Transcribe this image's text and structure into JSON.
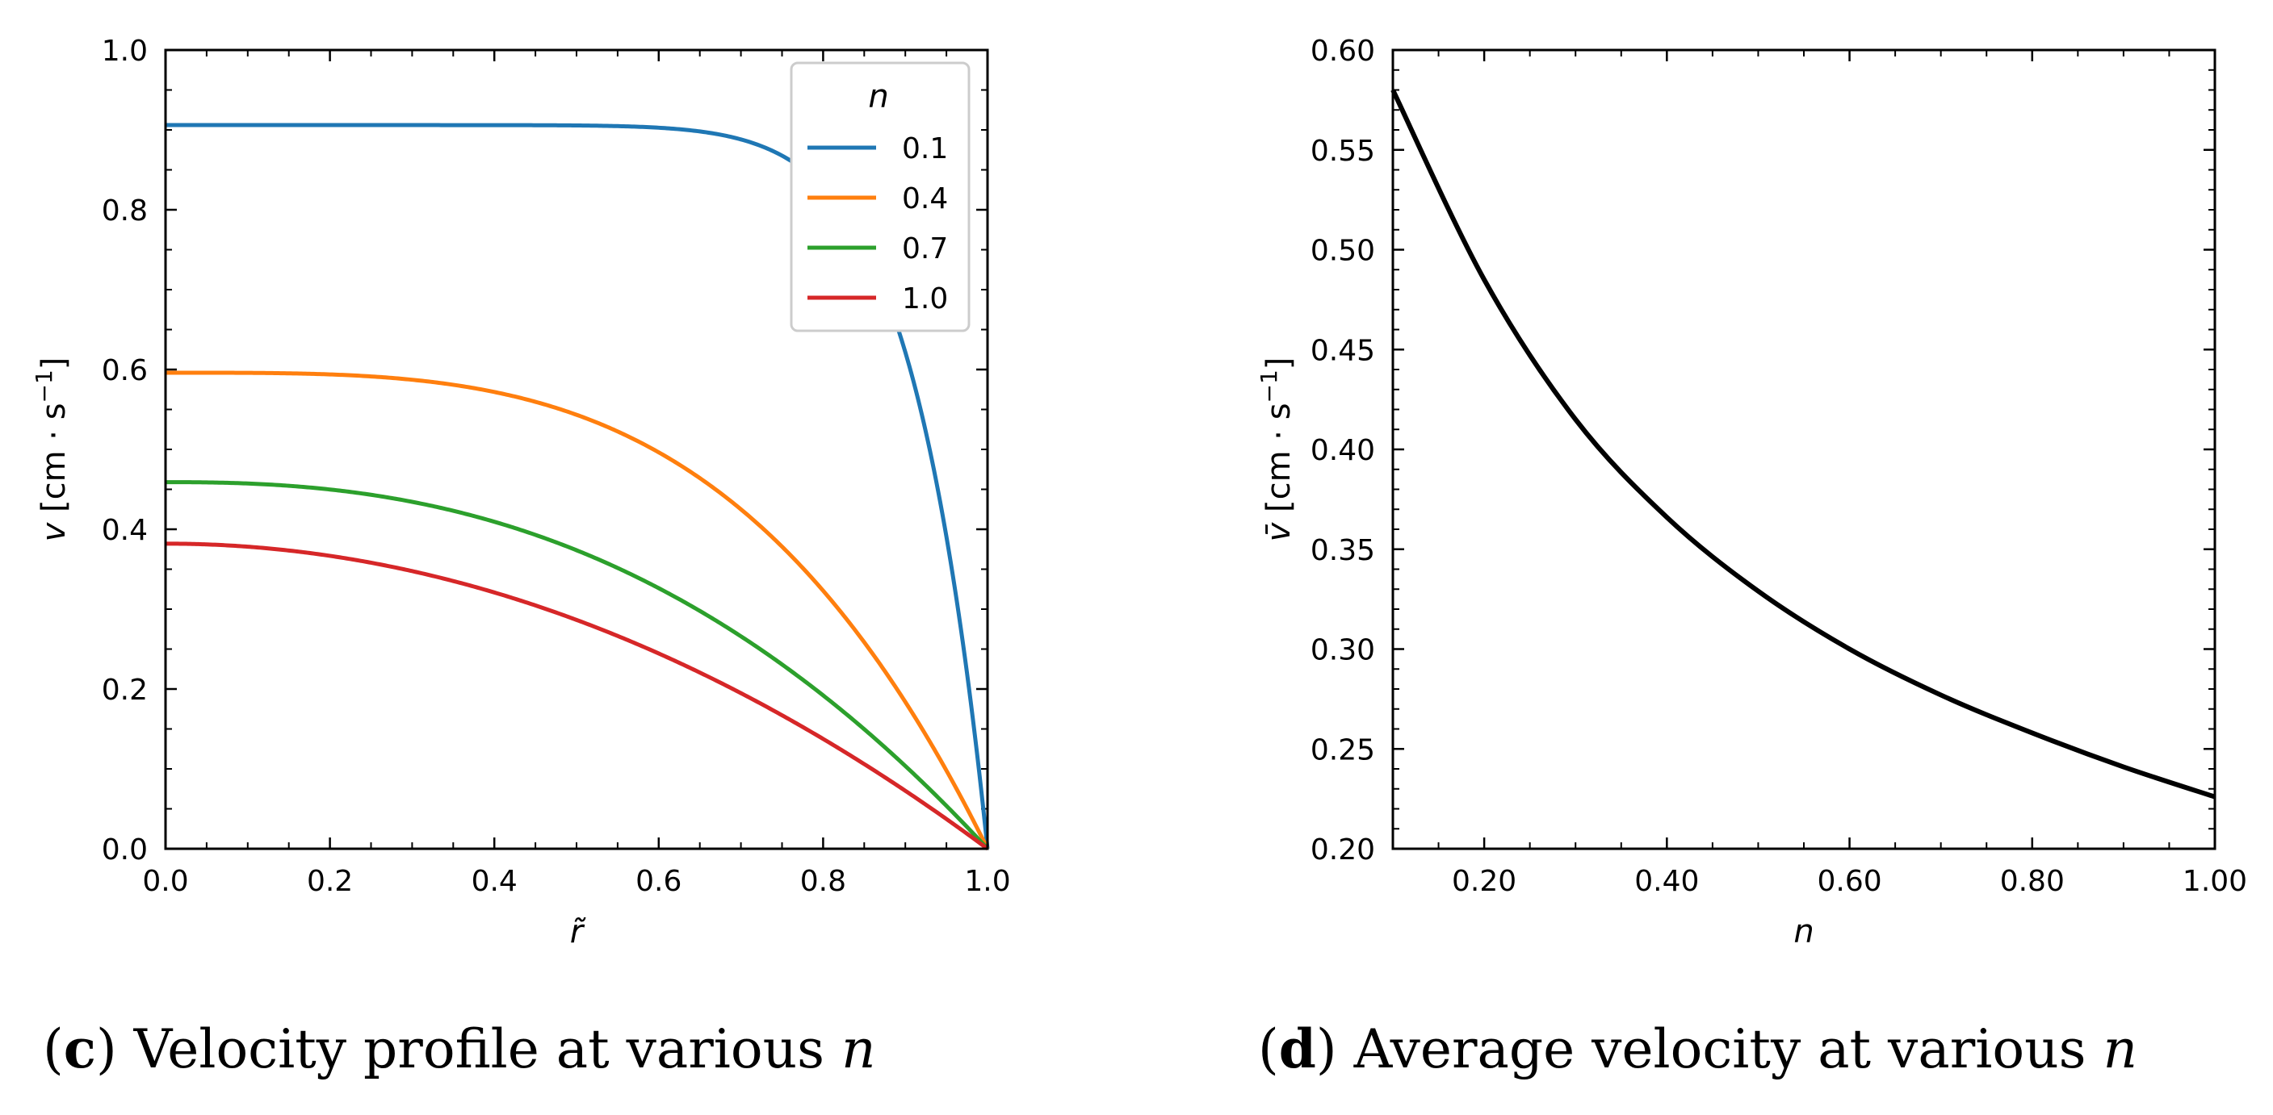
{
  "chart_data": [
    {
      "type": "line",
      "panel": "c",
      "caption": {
        "letter": "c",
        "text": "Velocity profile at various",
        "var": "n"
      },
      "xlabel": "r̃",
      "ylabel": "v [cm·s⁻¹]",
      "ylabel_parts": {
        "var": "v",
        "unit": "[cm · s",
        "exp": "−1",
        "close": "]"
      },
      "xlim": [
        0.0,
        1.0
      ],
      "ylim": [
        0.0,
        1.0
      ],
      "xticks": [
        0.0,
        0.2,
        0.4,
        0.6,
        0.8,
        1.0
      ],
      "xtick_labels": [
        "0.0",
        "0.2",
        "0.4",
        "0.6",
        "0.8",
        "1.0"
      ],
      "yticks": [
        0.0,
        0.2,
        0.4,
        0.6,
        0.8,
        1.0
      ],
      "ytick_labels": [
        "0.0",
        "0.2",
        "0.4",
        "0.6",
        "0.8",
        "1.0"
      ],
      "legend": {
        "title": "n",
        "placement": "top-right"
      },
      "series": [
        {
          "name": "0.1",
          "n": 0.1,
          "vmax": 0.906,
          "color": "#1f77b4"
        },
        {
          "name": "0.4",
          "n": 0.4,
          "vmax": 0.596,
          "color": "#ff7f0e"
        },
        {
          "name": "0.7",
          "n": 0.7,
          "vmax": 0.459,
          "color": "#2ca02c"
        },
        {
          "name": "1.0",
          "n": 1.0,
          "vmax": 0.382,
          "color": "#d62728"
        }
      ]
    },
    {
      "type": "line",
      "panel": "d",
      "caption": {
        "letter": "d",
        "text": "Average velocity at various",
        "var": "n"
      },
      "xlabel": "n",
      "ylabel": "v̄ [cm·s⁻¹]",
      "ylabel_parts": {
        "var": "v̄",
        "unit": "[cm · s",
        "exp": "−1",
        "close": "]"
      },
      "xlim": [
        0.1,
        1.0
      ],
      "ylim": [
        0.2,
        0.6
      ],
      "xticks": [
        0.2,
        0.4,
        0.6,
        0.8,
        1.0
      ],
      "xtick_labels": [
        "0.20",
        "0.40",
        "0.60",
        "0.80",
        "1.00"
      ],
      "yticks": [
        0.2,
        0.25,
        0.3,
        0.35,
        0.4,
        0.45,
        0.5,
        0.55,
        0.6
      ],
      "ytick_labels": [
        "0.20",
        "0.25",
        "0.30",
        "0.35",
        "0.40",
        "0.45",
        "0.50",
        "0.55",
        "0.60"
      ],
      "series": [
        {
          "name": "average velocity",
          "color": "#000000",
          "x": [
            0.1,
            0.2,
            0.3,
            0.4,
            0.5,
            0.6,
            0.7,
            0.8,
            0.9,
            1.0
          ],
          "y": [
            0.58,
            0.485,
            0.415,
            0.366,
            0.329,
            0.3,
            0.277,
            0.258,
            0.241,
            0.226
          ]
        }
      ]
    }
  ]
}
